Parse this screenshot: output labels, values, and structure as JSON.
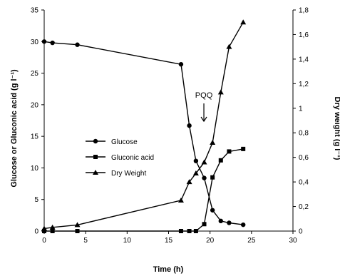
{
  "chart_data": {
    "type": "line",
    "xlabel": "Time (h)",
    "ylabel_left": "Glucose or Gluconic acid (g l⁻¹)",
    "ylabel_right": "Dry weight (g l⁻¹)",
    "xlim": [
      0,
      30
    ],
    "ylim_left": [
      0,
      35
    ],
    "ylim_right": [
      0,
      1.8
    ],
    "x_ticks": [
      "0",
      "5",
      "10",
      "15",
      "20",
      "25",
      "30"
    ],
    "y_left_ticks": [
      "0",
      "5",
      "10",
      "15",
      "20",
      "25",
      "30",
      "35"
    ],
    "y_right_ticks": [
      "0",
      "0,2",
      "0,4",
      "0,6",
      "0,8",
      "1",
      "1,2",
      "1,4",
      "1,6",
      "1,8"
    ],
    "legend_position": "center-left",
    "annotation": {
      "text": "PQQ",
      "x": 19
    },
    "series": [
      {
        "name": "Glucose",
        "axis": "left",
        "marker": "circle",
        "points": [
          [
            0,
            30
          ],
          [
            1,
            29.8
          ],
          [
            4,
            29.5
          ],
          [
            16.5,
            26.4
          ],
          [
            17.5,
            16.7
          ],
          [
            18.3,
            11.1
          ],
          [
            19.3,
            8.4
          ],
          [
            20.3,
            3.3
          ],
          [
            21.3,
            1.6
          ],
          [
            22.3,
            1.3
          ],
          [
            24,
            1.0
          ]
        ]
      },
      {
        "name": "Gluconic acid",
        "axis": "left",
        "marker": "square",
        "points": [
          [
            0,
            0
          ],
          [
            1,
            0
          ],
          [
            4,
            0
          ],
          [
            16.5,
            0
          ],
          [
            17.5,
            0
          ],
          [
            18.3,
            0
          ],
          [
            19.3,
            1.1
          ],
          [
            20.3,
            8.5
          ],
          [
            21.3,
            11.2
          ],
          [
            22.3,
            12.6
          ],
          [
            24,
            13.0
          ]
        ]
      },
      {
        "name": "Dry Weight",
        "axis": "right",
        "marker": "triangle",
        "points": [
          [
            0,
            0.02
          ],
          [
            1,
            0.03
          ],
          [
            4,
            0.05
          ],
          [
            16.5,
            0.25
          ],
          [
            17.5,
            0.4
          ],
          [
            18.3,
            0.47
          ],
          [
            19.3,
            0.56
          ],
          [
            20.3,
            0.72
          ],
          [
            21.3,
            1.13
          ],
          [
            22.3,
            1.5
          ],
          [
            24,
            1.7
          ]
        ]
      }
    ]
  }
}
